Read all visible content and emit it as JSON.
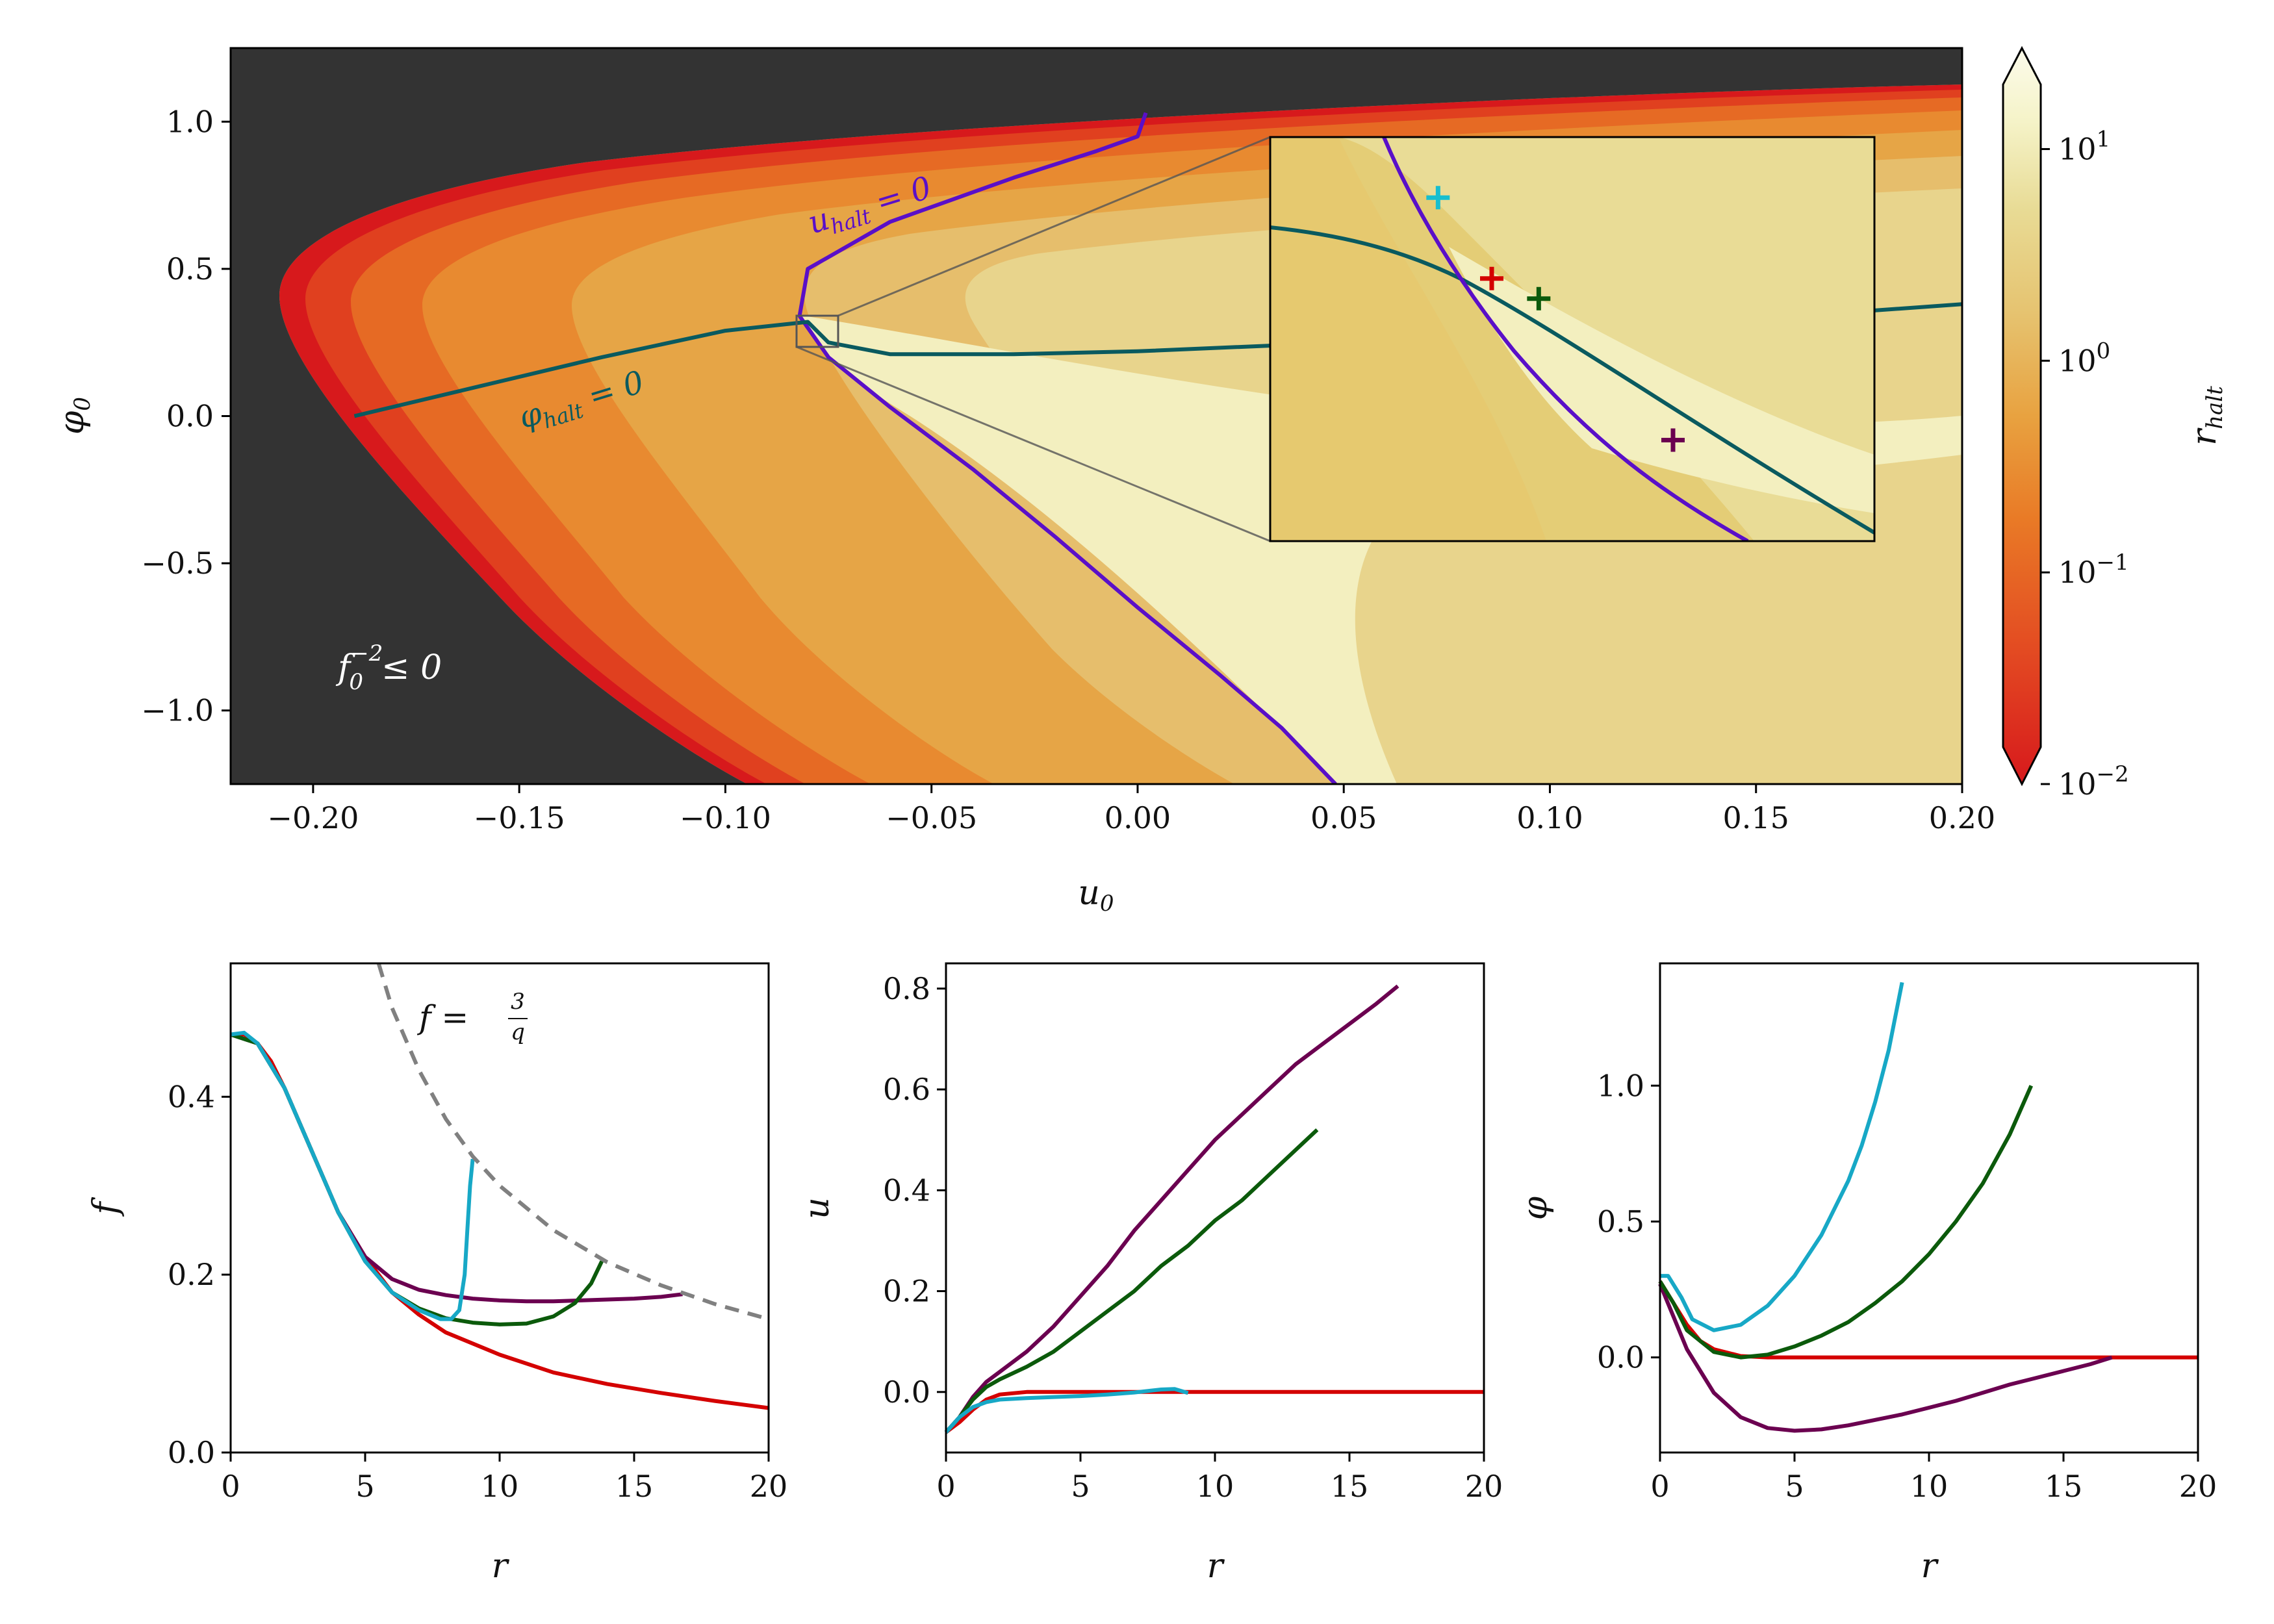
{
  "chart_data": [
    {
      "type": "heatmap",
      "xlabel": "u_0",
      "ylabel": "φ_0",
      "xlim": [
        -0.22,
        0.2
      ],
      "ylim": [
        -1.25,
        1.25
      ],
      "xticks": [
        "−0.20",
        "−0.15",
        "−0.10",
        "−0.05",
        "0.00",
        "0.05",
        "0.10",
        "0.15",
        "0.20"
      ],
      "xtick_values": [
        -0.2,
        -0.15,
        -0.1,
        -0.05,
        0.0,
        0.05,
        0.1,
        0.15,
        0.2
      ],
      "yticks": [
        "−1.0",
        "−0.5",
        "0.0",
        "0.5",
        "1.0"
      ],
      "ytick_values": [
        -1.0,
        -0.5,
        0.0,
        0.5,
        1.0
      ],
      "colorbar": {
        "label": "r_halt",
        "scale": "log",
        "range": [
          0.01,
          30
        ],
        "ticks": [
          "10^{-2}",
          "10^{-1}",
          "10^{0}",
          "10^{1}"
        ],
        "tick_values": [
          0.01,
          0.1,
          1,
          10
        ],
        "colors": [
          "#d7191c",
          "#e34a22",
          "#e97a26",
          "#e8a240",
          "#e6c370",
          "#e8db95",
          "#f5f3c8",
          "#fcfbeb"
        ]
      },
      "region_label": "f_0^{-2} ≤ 0",
      "region_color": "#333333",
      "annotations": [
        "u_halt = 0",
        "φ_halt = 0"
      ],
      "series": [
        {
          "name": "u_halt = 0",
          "color": "#5a0fc8",
          "x": [
            0.002,
            0.0,
            -0.01,
            -0.03,
            -0.06,
            -0.08,
            -0.082,
            -0.075,
            -0.06,
            -0.04,
            -0.02,
            0.0,
            0.02,
            0.035,
            0.048
          ],
          "y": [
            1.03,
            0.95,
            0.9,
            0.81,
            0.66,
            0.5,
            0.34,
            0.2,
            0.03,
            -0.18,
            -0.41,
            -0.65,
            -0.88,
            -1.06,
            -1.25
          ]
        },
        {
          "name": "φ_halt = 0",
          "color": "#0a5a5f",
          "x": [
            -0.19,
            -0.16,
            -0.13,
            -0.1,
            -0.08,
            -0.075,
            -0.06,
            -0.03,
            0.0,
            0.05,
            0.1,
            0.15,
            0.2
          ],
          "y": [
            0.0,
            0.1,
            0.2,
            0.29,
            0.32,
            0.25,
            0.21,
            0.21,
            0.22,
            0.25,
            0.29,
            0.33,
            0.38
          ]
        }
      ],
      "inset": {
        "xlim": [
          -0.082,
          -0.073
        ],
        "ylim": [
          0.24,
          0.34
        ]
      },
      "markers": [
        {
          "color": "#17becf",
          "x": -0.0795,
          "y": 0.325
        },
        {
          "color": "#d40000",
          "x": -0.0787,
          "y": 0.305
        },
        {
          "color": "#0b5a0b",
          "x": -0.078,
          "y": 0.3
        },
        {
          "color": "#6b0050",
          "x": -0.076,
          "y": 0.265
        }
      ]
    },
    {
      "type": "line",
      "xlabel": "r",
      "ylabel": "f",
      "xlim": [
        0,
        20
      ],
      "ylim": [
        0,
        0.55
      ],
      "xticks": [
        "0",
        "5",
        "10",
        "15",
        "20"
      ],
      "xtick_values": [
        0,
        5,
        10,
        15,
        20
      ],
      "yticks": [
        "0.0",
        "0.2",
        "0.4"
      ],
      "ytick_values": [
        0.0,
        0.2,
        0.4
      ],
      "annotation": "f = 3/q",
      "series": [
        {
          "color": "#d40000",
          "x": [
            0,
            0.5,
            1,
            1.5,
            2,
            3,
            4,
            5,
            6,
            7,
            8,
            10,
            12,
            14,
            16,
            18,
            20
          ],
          "y": [
            0.47,
            0.47,
            0.46,
            0.44,
            0.41,
            0.34,
            0.27,
            0.22,
            0.18,
            0.155,
            0.135,
            0.11,
            0.09,
            0.077,
            0.067,
            0.058,
            0.05
          ]
        },
        {
          "color": "#6b0050",
          "x": [
            0,
            1,
            2,
            3,
            4,
            5,
            6,
            7,
            8,
            9,
            10,
            11,
            12,
            13,
            14,
            15,
            16,
            16.8
          ],
          "y": [
            0.47,
            0.46,
            0.41,
            0.34,
            0.27,
            0.22,
            0.195,
            0.183,
            0.177,
            0.173,
            0.171,
            0.17,
            0.17,
            0.171,
            0.172,
            0.173,
            0.175,
            0.178
          ]
        },
        {
          "color": "#0b5a0b",
          "x": [
            0,
            1,
            2,
            3,
            4,
            5,
            6,
            7,
            8,
            9,
            10,
            11,
            12,
            12.8,
            13.4,
            13.8
          ],
          "y": [
            0.47,
            0.46,
            0.41,
            0.34,
            0.27,
            0.215,
            0.18,
            0.162,
            0.151,
            0.146,
            0.144,
            0.145,
            0.153,
            0.168,
            0.19,
            0.215
          ]
        },
        {
          "color": "#17a8c6",
          "x": [
            0,
            0.5,
            1,
            2,
            3,
            4,
            5,
            6,
            7,
            7.8,
            8.2,
            8.5,
            8.7,
            8.8,
            8.9,
            9.0
          ],
          "y": [
            0.47,
            0.472,
            0.46,
            0.41,
            0.34,
            0.27,
            0.215,
            0.18,
            0.16,
            0.15,
            0.15,
            0.16,
            0.2,
            0.25,
            0.3,
            0.33
          ]
        },
        {
          "color": "#808080",
          "dashed": true,
          "x": [
            5.5,
            6,
            7,
            8,
            9,
            10,
            12,
            14,
            16,
            18,
            20
          ],
          "y": [
            0.55,
            0.5,
            0.43,
            0.375,
            0.333,
            0.3,
            0.25,
            0.214,
            0.188,
            0.167,
            0.15
          ]
        }
      ]
    },
    {
      "type": "line",
      "xlabel": "r",
      "ylabel": "u",
      "xlim": [
        0,
        20
      ],
      "ylim": [
        -0.12,
        0.85
      ],
      "xticks": [
        "0",
        "5",
        "10",
        "15",
        "20"
      ],
      "xtick_values": [
        0,
        5,
        10,
        15,
        20
      ],
      "yticks": [
        "0.0",
        "0.2",
        "0.4",
        "0.6",
        "0.8"
      ],
      "ytick_values": [
        0.0,
        0.2,
        0.4,
        0.6,
        0.8
      ],
      "series": [
        {
          "color": "#d40000",
          "x": [
            0,
            0.5,
            1,
            1.5,
            2,
            3,
            4,
            5,
            10,
            15,
            20
          ],
          "y": [
            -0.08,
            -0.06,
            -0.035,
            -0.015,
            -0.005,
            0.0,
            0.0,
            0.0,
            0.0,
            0.0,
            0.0
          ]
        },
        {
          "color": "#6b0050",
          "x": [
            0,
            0.5,
            1,
            1.5,
            2,
            3,
            4,
            5,
            6,
            7,
            8,
            9,
            10,
            11,
            12,
            13,
            14,
            15,
            16,
            16.8
          ],
          "y": [
            -0.08,
            -0.05,
            -0.01,
            0.02,
            0.04,
            0.08,
            0.13,
            0.19,
            0.25,
            0.32,
            0.38,
            0.44,
            0.5,
            0.55,
            0.6,
            0.65,
            0.69,
            0.73,
            0.77,
            0.805
          ]
        },
        {
          "color": "#0b5a0b",
          "x": [
            0,
            0.5,
            1,
            1.5,
            2,
            3,
            4,
            5,
            6,
            7,
            8,
            9,
            10,
            11,
            12,
            13,
            13.8
          ],
          "y": [
            -0.08,
            -0.05,
            -0.015,
            0.01,
            0.025,
            0.05,
            0.08,
            0.12,
            0.16,
            0.2,
            0.25,
            0.29,
            0.34,
            0.38,
            0.43,
            0.48,
            0.52
          ]
        },
        {
          "color": "#17a8c6",
          "x": [
            0,
            0.5,
            1,
            1.5,
            2,
            3,
            4,
            5,
            6,
            7,
            8,
            8.5,
            9.0
          ],
          "y": [
            -0.08,
            -0.05,
            -0.03,
            -0.02,
            -0.015,
            -0.012,
            -0.01,
            -0.008,
            -0.005,
            -0.001,
            0.005,
            0.006,
            -0.002
          ]
        }
      ]
    },
    {
      "type": "line",
      "xlabel": "r",
      "ylabel": "φ",
      "xlim": [
        0,
        20
      ],
      "ylim": [
        -0.35,
        1.45
      ],
      "xticks": [
        "0",
        "5",
        "10",
        "15",
        "20"
      ],
      "xtick_values": [
        0,
        5,
        10,
        15,
        20
      ],
      "yticks": [
        "0.0",
        "0.5",
        "1.0"
      ],
      "ytick_values": [
        0.0,
        0.5,
        1.0
      ],
      "series": [
        {
          "color": "#d40000",
          "x": [
            0,
            0.5,
            1,
            1.5,
            2,
            3,
            4,
            5,
            10,
            15,
            20
          ],
          "y": [
            0.28,
            0.2,
            0.12,
            0.06,
            0.03,
            0.005,
            0.0,
            0.0,
            0.0,
            0.0,
            0.0
          ]
        },
        {
          "color": "#6b0050",
          "x": [
            0,
            0.5,
            1,
            2,
            3,
            4,
            5,
            6,
            7,
            8,
            9,
            10,
            11,
            12,
            13,
            14,
            15,
            16,
            16.8
          ],
          "y": [
            0.27,
            0.15,
            0.03,
            -0.13,
            -0.22,
            -0.26,
            -0.27,
            -0.265,
            -0.25,
            -0.23,
            -0.21,
            -0.185,
            -0.16,
            -0.13,
            -0.1,
            -0.075,
            -0.05,
            -0.025,
            0.0
          ]
        },
        {
          "color": "#0b5a0b",
          "x": [
            0,
            0.5,
            1,
            2,
            3,
            4,
            5,
            6,
            7,
            8,
            9,
            10,
            11,
            12,
            13,
            13.8
          ],
          "y": [
            0.28,
            0.2,
            0.1,
            0.02,
            0.0,
            0.01,
            0.04,
            0.08,
            0.13,
            0.2,
            0.28,
            0.38,
            0.5,
            0.64,
            0.82,
            1.0
          ]
        },
        {
          "color": "#17a8c6",
          "x": [
            0,
            0.3,
            0.8,
            1.2,
            2,
            3,
            4,
            5,
            6,
            7,
            7.5,
            8,
            8.5,
            9.0
          ],
          "y": [
            0.3,
            0.3,
            0.22,
            0.14,
            0.1,
            0.12,
            0.19,
            0.3,
            0.45,
            0.65,
            0.78,
            0.94,
            1.13,
            1.38
          ]
        }
      ]
    }
  ]
}
